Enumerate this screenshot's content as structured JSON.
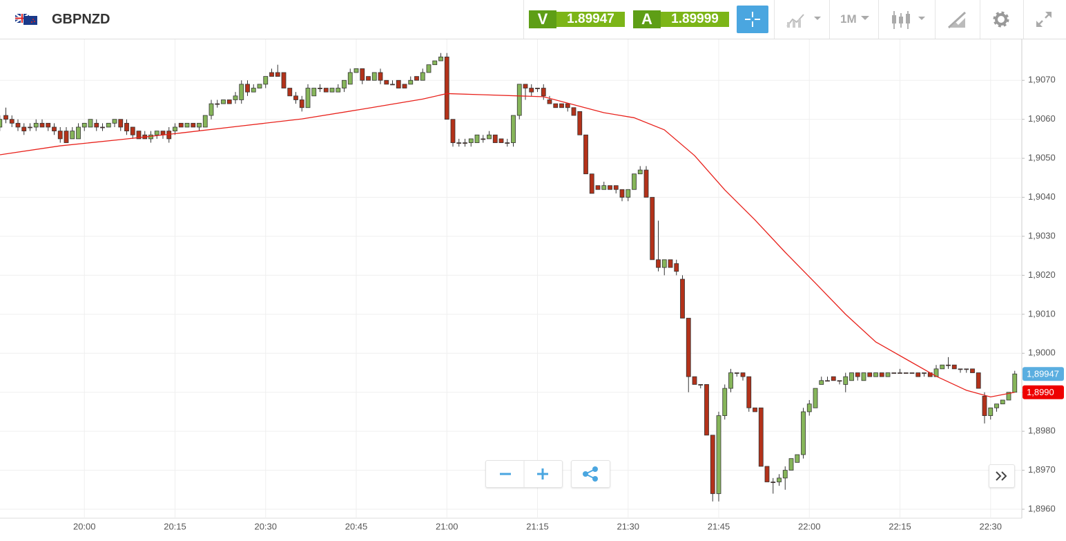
{
  "header": {
    "symbol": "GBPNZD",
    "bid_label": "V",
    "bid": "1.89947",
    "ask_label": "A",
    "ask": "1.89999",
    "interval": "1M"
  },
  "chart_data": {
    "type": "candlestick",
    "categories": [
      null,
      null,
      null,
      null,
      null,
      null,
      null,
      null,
      null,
      null,
      null,
      null,
      null,
      null,
      "20:00",
      null,
      null,
      null,
      null,
      null,
      null,
      null,
      null,
      null,
      null,
      null,
      null,
      null,
      null,
      "20:15",
      null,
      null,
      null,
      null,
      null,
      null,
      null,
      null,
      null,
      null,
      null,
      null,
      null,
      null,
      "20:30",
      null,
      null,
      null,
      null,
      null,
      null,
      null,
      null,
      null,
      null,
      null,
      null,
      null,
      null,
      "20:45",
      null,
      null,
      null,
      null,
      null,
      null,
      null,
      null,
      null,
      null,
      null,
      null,
      null,
      null,
      "21:00",
      null,
      null,
      null,
      null,
      null,
      null,
      null,
      null,
      null,
      null,
      null,
      null,
      null,
      null,
      "21:15",
      null,
      null,
      null,
      null,
      null,
      null,
      null,
      null,
      null,
      null,
      null,
      null,
      null,
      null,
      "21:30",
      null,
      null,
      null,
      null,
      null,
      null,
      null,
      null,
      null,
      null,
      null,
      null,
      null,
      null,
      "21:45",
      null,
      null,
      null,
      null,
      null,
      null,
      null,
      null,
      null,
      null,
      null,
      null,
      null,
      null,
      "22:00",
      null,
      null,
      null,
      null,
      null,
      null,
      null,
      null,
      null,
      null,
      null,
      null,
      null,
      null,
      "22:15",
      null,
      null,
      null,
      null,
      null,
      null,
      null,
      null,
      null,
      null,
      null,
      null,
      null,
      null,
      "22:30",
      null,
      null,
      null,
      null
    ],
    "open": [
      1.9058,
      1.9061,
      1.906,
      1.9059,
      1.9058,
      1.9058,
      1.9058,
      1.9059,
      1.9059,
      1.9058,
      1.9057,
      1.9057,
      1.9055,
      1.9055,
      1.9058,
      1.9058,
      1.9059,
      1.9058,
      1.9058,
      1.9059,
      1.906,
      1.9059,
      1.9058,
      1.9057,
      1.9056,
      1.9055,
      1.9056,
      1.9057,
      1.9057,
      1.9057,
      1.9059,
      1.9058,
      1.9059,
      1.9058,
      1.9058,
      1.9061,
      1.9064,
      1.9064,
      1.9065,
      1.9065,
      1.9065,
      1.9069,
      1.9067,
      1.9068,
      1.9069,
      1.9072,
      1.9072,
      1.9072,
      1.9068,
      1.9066,
      1.9065,
      1.9063,
      1.9066,
      1.9068,
      1.9068,
      1.9067,
      1.9067,
      1.9068,
      1.9069,
      1.9072,
      1.9073,
      1.9071,
      1.907,
      1.9072,
      1.907,
      1.9069,
      1.907,
      1.9069,
      1.9069,
      1.9071,
      1.907,
      1.9072,
      1.9074,
      1.9075,
      1.9076,
      1.906,
      1.9054,
      1.9054,
      1.9054,
      1.9054,
      1.9055,
      1.9055,
      1.9056,
      1.9055,
      1.9054,
      1.9054,
      1.9061,
      1.9069,
      1.9068,
      1.9068,
      1.9068,
      1.9065,
      1.9064,
      1.9064,
      1.9064,
      1.9063,
      1.9062,
      1.9056,
      1.9046,
      1.9043,
      1.9042,
      1.9043,
      1.9043,
      1.9042,
      1.904,
      1.9042,
      1.9046,
      1.9047,
      1.904,
      1.9024,
      1.9022,
      1.9024,
      1.9023,
      1.9019,
      1.9009,
      1.8994,
      1.8992,
      1.8992,
      1.8979,
      1.8964,
      1.8984,
      1.8991,
      1.8995,
      1.8995,
      1.8994,
      1.8986,
      1.8986,
      1.8971,
      1.8967,
      1.8967,
      1.8968,
      1.897,
      1.8972,
      1.8974,
      1.8985,
      1.8986,
      1.8992,
      1.8993,
      1.8994,
      1.8993,
      1.8992,
      1.8993,
      1.8995,
      1.8993,
      1.8995,
      1.8994,
      1.8995,
      1.8994,
      1.8995,
      1.8995,
      1.8995,
      1.8995,
      1.8995,
      1.8995,
      1.8995,
      1.8994,
      1.8996,
      1.8997,
      1.8997,
      1.8996,
      1.8996,
      1.8996,
      1.8995,
      1.8989,
      1.8984,
      1.8986,
      1.8987,
      1.8988,
      1.899
    ],
    "high": [
      1.9061,
      1.9063,
      1.9061,
      1.906,
      1.9059,
      1.9059,
      1.906,
      1.906,
      1.9059,
      1.9059,
      1.9058,
      1.9058,
      1.9058,
      1.9059,
      1.9059,
      1.906,
      1.906,
      1.9059,
      1.9059,
      1.906,
      1.906,
      1.906,
      1.9058,
      1.9057,
      1.9057,
      1.9057,
      1.9057,
      1.9057,
      1.9058,
      1.9059,
      1.9059,
      1.9059,
      1.9059,
      1.9059,
      1.9061,
      1.9065,
      1.9065,
      1.9065,
      1.9065,
      1.9067,
      1.907,
      1.907,
      1.9069,
      1.9069,
      1.9071,
      1.9073,
      1.9074,
      1.9072,
      1.9068,
      1.9067,
      1.9066,
      1.9069,
      1.9068,
      1.9069,
      1.9068,
      1.9068,
      1.9069,
      1.907,
      1.9073,
      1.9073,
      1.9073,
      1.9071,
      1.9072,
      1.9073,
      1.907,
      1.907,
      1.907,
      1.9069,
      1.9071,
      1.9071,
      1.9073,
      1.9074,
      1.9075,
      1.9077,
      1.9077,
      1.906,
      1.9055,
      1.9055,
      1.9055,
      1.9056,
      1.9056,
      1.9057,
      1.9056,
      1.9055,
      1.9055,
      1.9061,
      1.9069,
      1.9069,
      1.9069,
      1.9068,
      1.9069,
      1.9066,
      1.9064,
      1.9064,
      1.9064,
      1.9063,
      1.9062,
      1.9056,
      1.9046,
      1.9043,
      1.9044,
      1.9043,
      1.9043,
      1.9042,
      1.9042,
      1.9046,
      1.9048,
      1.9048,
      1.904,
      1.9034,
      1.9024,
      1.9024,
      1.9024,
      1.902,
      1.9009,
      1.8994,
      1.8992,
      1.8992,
      1.8979,
      1.8985,
      1.8992,
      1.8996,
      1.8995,
      1.8995,
      1.8994,
      1.8986,
      1.8986,
      1.8971,
      1.8968,
      1.8969,
      1.8971,
      1.8973,
      1.8974,
      1.8986,
      1.8988,
      1.8991,
      1.8994,
      1.8994,
      1.8994,
      1.8993,
      1.8995,
      1.8995,
      1.8995,
      1.8995,
      1.8995,
      1.8995,
      1.8995,
      1.8995,
      1.8995,
      1.8996,
      1.8995,
      1.8995,
      1.8995,
      1.8995,
      1.8995,
      1.8997,
      1.8997,
      1.8999,
      1.8997,
      1.8996,
      1.8996,
      1.8996,
      1.8995,
      1.899,
      1.8986,
      1.8987,
      1.8988,
      1.899,
      1.89955
    ],
    "low": [
      1.9057,
      1.9059,
      1.9058,
      1.9057,
      1.9056,
      1.9057,
      1.9057,
      1.9058,
      1.9057,
      1.9056,
      1.9054,
      1.9054,
      1.9055,
      1.9055,
      1.9057,
      1.9058,
      1.9057,
      1.9057,
      1.9058,
      1.9058,
      1.9057,
      1.9056,
      1.9055,
      1.9055,
      1.9055,
      1.9054,
      1.9055,
      1.9055,
      1.9054,
      1.9056,
      1.9058,
      1.9058,
      1.9058,
      1.9057,
      1.9058,
      1.906,
      1.9063,
      1.9064,
      1.9064,
      1.9064,
      1.9064,
      1.9066,
      1.9067,
      1.9068,
      1.9068,
      1.9071,
      1.9071,
      1.9068,
      1.9066,
      1.9064,
      1.9062,
      1.9063,
      1.9066,
      1.9067,
      1.9067,
      1.9067,
      1.9067,
      1.9067,
      1.9069,
      1.9072,
      1.9069,
      1.907,
      1.907,
      1.9069,
      1.9069,
      1.9069,
      1.9068,
      1.9068,
      1.9069,
      1.907,
      1.907,
      1.9072,
      1.9074,
      1.9075,
      1.906,
      1.9053,
      1.9053,
      1.9053,
      1.9053,
      1.9054,
      1.9054,
      1.9055,
      1.9054,
      1.9054,
      1.9053,
      1.9053,
      1.906,
      1.9065,
      1.9066,
      1.9067,
      1.9065,
      1.9064,
      1.9063,
      1.9063,
      1.9062,
      1.9061,
      1.9056,
      1.9046,
      1.9041,
      1.9042,
      1.9042,
      1.9042,
      1.9041,
      1.9039,
      1.9039,
      1.9042,
      1.9046,
      1.904,
      1.9024,
      1.9021,
      1.902,
      1.9022,
      1.902,
      1.9009,
      1.899,
      1.8992,
      1.8991,
      1.8979,
      1.8962,
      1.8962,
      1.8983,
      1.899,
      1.8994,
      1.8993,
      1.8985,
      1.8985,
      1.8971,
      1.8967,
      1.8964,
      1.8966,
      1.8965,
      1.897,
      1.8972,
      1.8973,
      1.8984,
      1.8986,
      1.8992,
      1.8993,
      1.8993,
      1.8992,
      1.899,
      1.8993,
      1.8993,
      1.8993,
      1.8994,
      1.8994,
      1.8994,
      1.8994,
      1.8995,
      1.8995,
      1.8995,
      1.8995,
      1.8994,
      1.8994,
      1.8994,
      1.8994,
      1.8996,
      1.8996,
      1.8996,
      1.8995,
      1.8995,
      1.8995,
      1.8991,
      1.8982,
      1.8983,
      1.8985,
      1.8987,
      1.8988,
      1.899
    ],
    "close": [
      1.906,
      1.906,
      1.9059,
      1.9058,
      1.9057,
      1.9058,
      1.9059,
      1.9058,
      1.9058,
      1.9057,
      1.9055,
      1.9054,
      1.9057,
      1.9058,
      1.9059,
      1.906,
      1.9058,
      1.9058,
      1.9059,
      1.906,
      1.9058,
      1.9057,
      1.9056,
      1.9055,
      1.9055,
      1.9056,
      1.9057,
      1.9056,
      1.9055,
      1.9058,
      1.9058,
      1.9059,
      1.9058,
      1.9059,
      1.9061,
      1.9064,
      1.9064,
      1.9065,
      1.9064,
      1.9066,
      1.9069,
      1.9067,
      1.9068,
      1.9069,
      1.9071,
      1.9071,
      1.9071,
      1.9068,
      1.9066,
      1.9065,
      1.9063,
      1.9068,
      1.9068,
      1.9068,
      1.9067,
      1.9068,
      1.9068,
      1.907,
      1.9072,
      1.9073,
      1.907,
      1.907,
      1.9072,
      1.907,
      1.9069,
      1.9069,
      1.9068,
      1.9068,
      1.907,
      1.907,
      1.9072,
      1.9074,
      1.9075,
      1.9076,
      1.906,
      1.9054,
      1.9054,
      1.9054,
      1.9055,
      1.9056,
      1.9055,
      1.9056,
      1.9054,
      1.9054,
      1.9054,
      1.9061,
      1.9069,
      1.9068,
      1.9067,
      1.9068,
      1.9066,
      1.9064,
      1.9063,
      1.9063,
      1.9063,
      1.9061,
      1.9056,
      1.9046,
      1.9041,
      1.9042,
      1.9043,
      1.9042,
      1.9042,
      1.904,
      1.9042,
      1.9046,
      1.9047,
      1.904,
      1.9024,
      1.9022,
      1.9024,
      1.9022,
      1.9021,
      1.9009,
      1.8994,
      1.8992,
      1.8992,
      1.8979,
      1.8964,
      1.8984,
      1.8991,
      1.8995,
      1.8995,
      1.8994,
      1.8986,
      1.8985,
      1.8971,
      1.8967,
      1.8967,
      1.8968,
      1.897,
      1.8973,
      1.8974,
      1.8985,
      1.8987,
      1.8991,
      1.8993,
      1.8993,
      1.8993,
      1.8993,
      1.8994,
      1.8995,
      1.8994,
      1.8995,
      1.8994,
      1.8995,
      1.8994,
      1.8995,
      1.8995,
      1.8995,
      1.8995,
      1.8995,
      1.8994,
      1.8995,
      1.8994,
      1.8996,
      1.8997,
      1.8997,
      1.8996,
      1.8996,
      1.8996,
      1.8995,
      1.8991,
      1.8984,
      1.8986,
      1.8987,
      1.8988,
      1.899,
      1.89947
    ],
    "up_color": "#86b55a",
    "down_color": "#b3321a",
    "ylim": [
      1.89577,
      1.90805
    ],
    "yticks": [
      {
        "value": 1.896,
        "label": "1,8960"
      },
      {
        "value": 1.897,
        "label": "1,8970"
      },
      {
        "value": 1.898,
        "label": "1,8980"
      },
      {
        "value": 1.899,
        "label": "1,8990"
      },
      {
        "value": 1.9,
        "label": "1,9000"
      },
      {
        "value": 1.901,
        "label": "1,9010"
      },
      {
        "value": 1.902,
        "label": "1,9020"
      },
      {
        "value": 1.903,
        "label": "1,9030"
      },
      {
        "value": 1.904,
        "label": "1,9040"
      },
      {
        "value": 1.905,
        "label": "1,9050"
      },
      {
        "value": 1.906,
        "label": "1,9060"
      },
      {
        "value": 1.907,
        "label": "1,9070"
      }
    ],
    "grid": true,
    "overlay": {
      "type": "line",
      "color": "#e8201a",
      "x": [
        0,
        10,
        20,
        30,
        40,
        50,
        60,
        70,
        74,
        80,
        90,
        100,
        105,
        110,
        115,
        120,
        125,
        130,
        135,
        140,
        145,
        150,
        155,
        160,
        164,
        168
      ],
      "values": [
        1.90509,
        1.90532,
        1.90548,
        1.90565,
        1.90583,
        1.90601,
        1.90626,
        1.90652,
        1.90666,
        1.90663,
        1.90658,
        1.90617,
        1.90604,
        1.90573,
        1.90507,
        1.90419,
        1.90342,
        1.90259,
        1.9018,
        1.901,
        1.90029,
        1.89985,
        1.89941,
        1.89905,
        1.89888,
        1.899
      ]
    },
    "price_tags": [
      {
        "value": 1.89947,
        "label": "1,89947",
        "color": "#5aaee0"
      },
      {
        "value": 1.899,
        "label": "1,8990",
        "color": "#ee0000"
      }
    ]
  }
}
